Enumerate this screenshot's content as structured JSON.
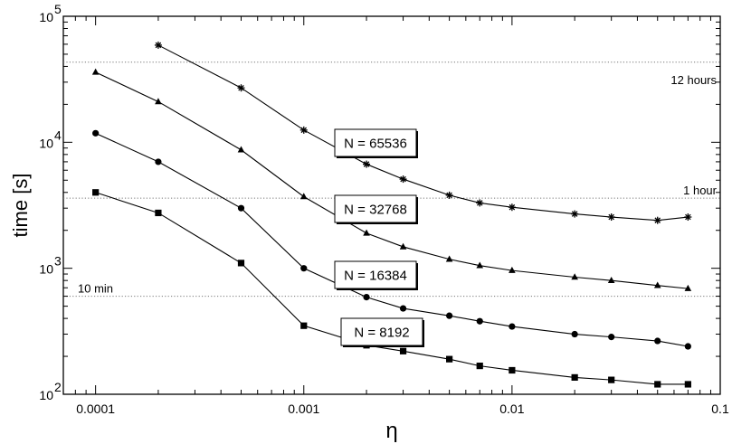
{
  "chart_data": {
    "type": "line",
    "xlabel": "η",
    "ylabel": "time [s]",
    "xscale": "log",
    "yscale": "log",
    "xlim": [
      7e-05,
      0.1
    ],
    "ylim": [
      100,
      100000
    ],
    "x_ticks": [
      {
        "value": 0.0001,
        "label": "0.0001"
      },
      {
        "value": 0.001,
        "label": "0.001"
      },
      {
        "value": 0.01,
        "label": "0.01"
      },
      {
        "value": 0.1,
        "label": "0.1"
      }
    ],
    "y_ticks": [
      {
        "value": 100,
        "base": "10",
        "exp": "2"
      },
      {
        "value": 1000,
        "base": "10",
        "exp": "3"
      },
      {
        "value": 10000,
        "base": "10",
        "exp": "4"
      },
      {
        "value": 100000,
        "base": "10",
        "exp": "5"
      }
    ],
    "reference_lines": [
      {
        "label": "12 hours",
        "value": 43200
      },
      {
        "label": "1 hour",
        "value": 3600
      },
      {
        "label": "10 min",
        "value": 600
      }
    ],
    "grid": false,
    "series": [
      {
        "name": "N = 65536",
        "marker": "star",
        "x": [
          0.0002,
          0.0005,
          0.001,
          0.002,
          0.003,
          0.005,
          0.007,
          0.01,
          0.02,
          0.03,
          0.05,
          0.07
        ],
        "y": [
          59000,
          27000,
          12500,
          6700,
          5100,
          3800,
          3300,
          3050,
          2700,
          2550,
          2400,
          2550
        ]
      },
      {
        "name": "N = 32768",
        "marker": "triangle",
        "x": [
          0.0001,
          0.0002,
          0.0005,
          0.001,
          0.002,
          0.003,
          0.005,
          0.007,
          0.01,
          0.02,
          0.03,
          0.05,
          0.07
        ],
        "y": [
          36000,
          21000,
          8700,
          3700,
          1900,
          1480,
          1180,
          1050,
          960,
          850,
          800,
          730,
          690
        ]
      },
      {
        "name": "N = 16384",
        "marker": "circle",
        "x": [
          0.0001,
          0.0002,
          0.0005,
          0.001,
          0.002,
          0.003,
          0.005,
          0.007,
          0.01,
          0.02,
          0.03,
          0.05,
          0.07
        ],
        "y": [
          11800,
          7000,
          3000,
          1000,
          590,
          480,
          420,
          380,
          345,
          300,
          285,
          265,
          240
        ]
      },
      {
        "name": "N = 8192",
        "marker": "square",
        "x": [
          0.0001,
          0.0002,
          0.0005,
          0.001,
          0.002,
          0.003,
          0.005,
          0.007,
          0.01,
          0.02,
          0.03,
          0.05,
          0.07
        ],
        "y": [
          4000,
          2750,
          1100,
          350,
          245,
          220,
          190,
          168,
          155,
          136,
          130,
          120,
          120
        ]
      }
    ]
  }
}
